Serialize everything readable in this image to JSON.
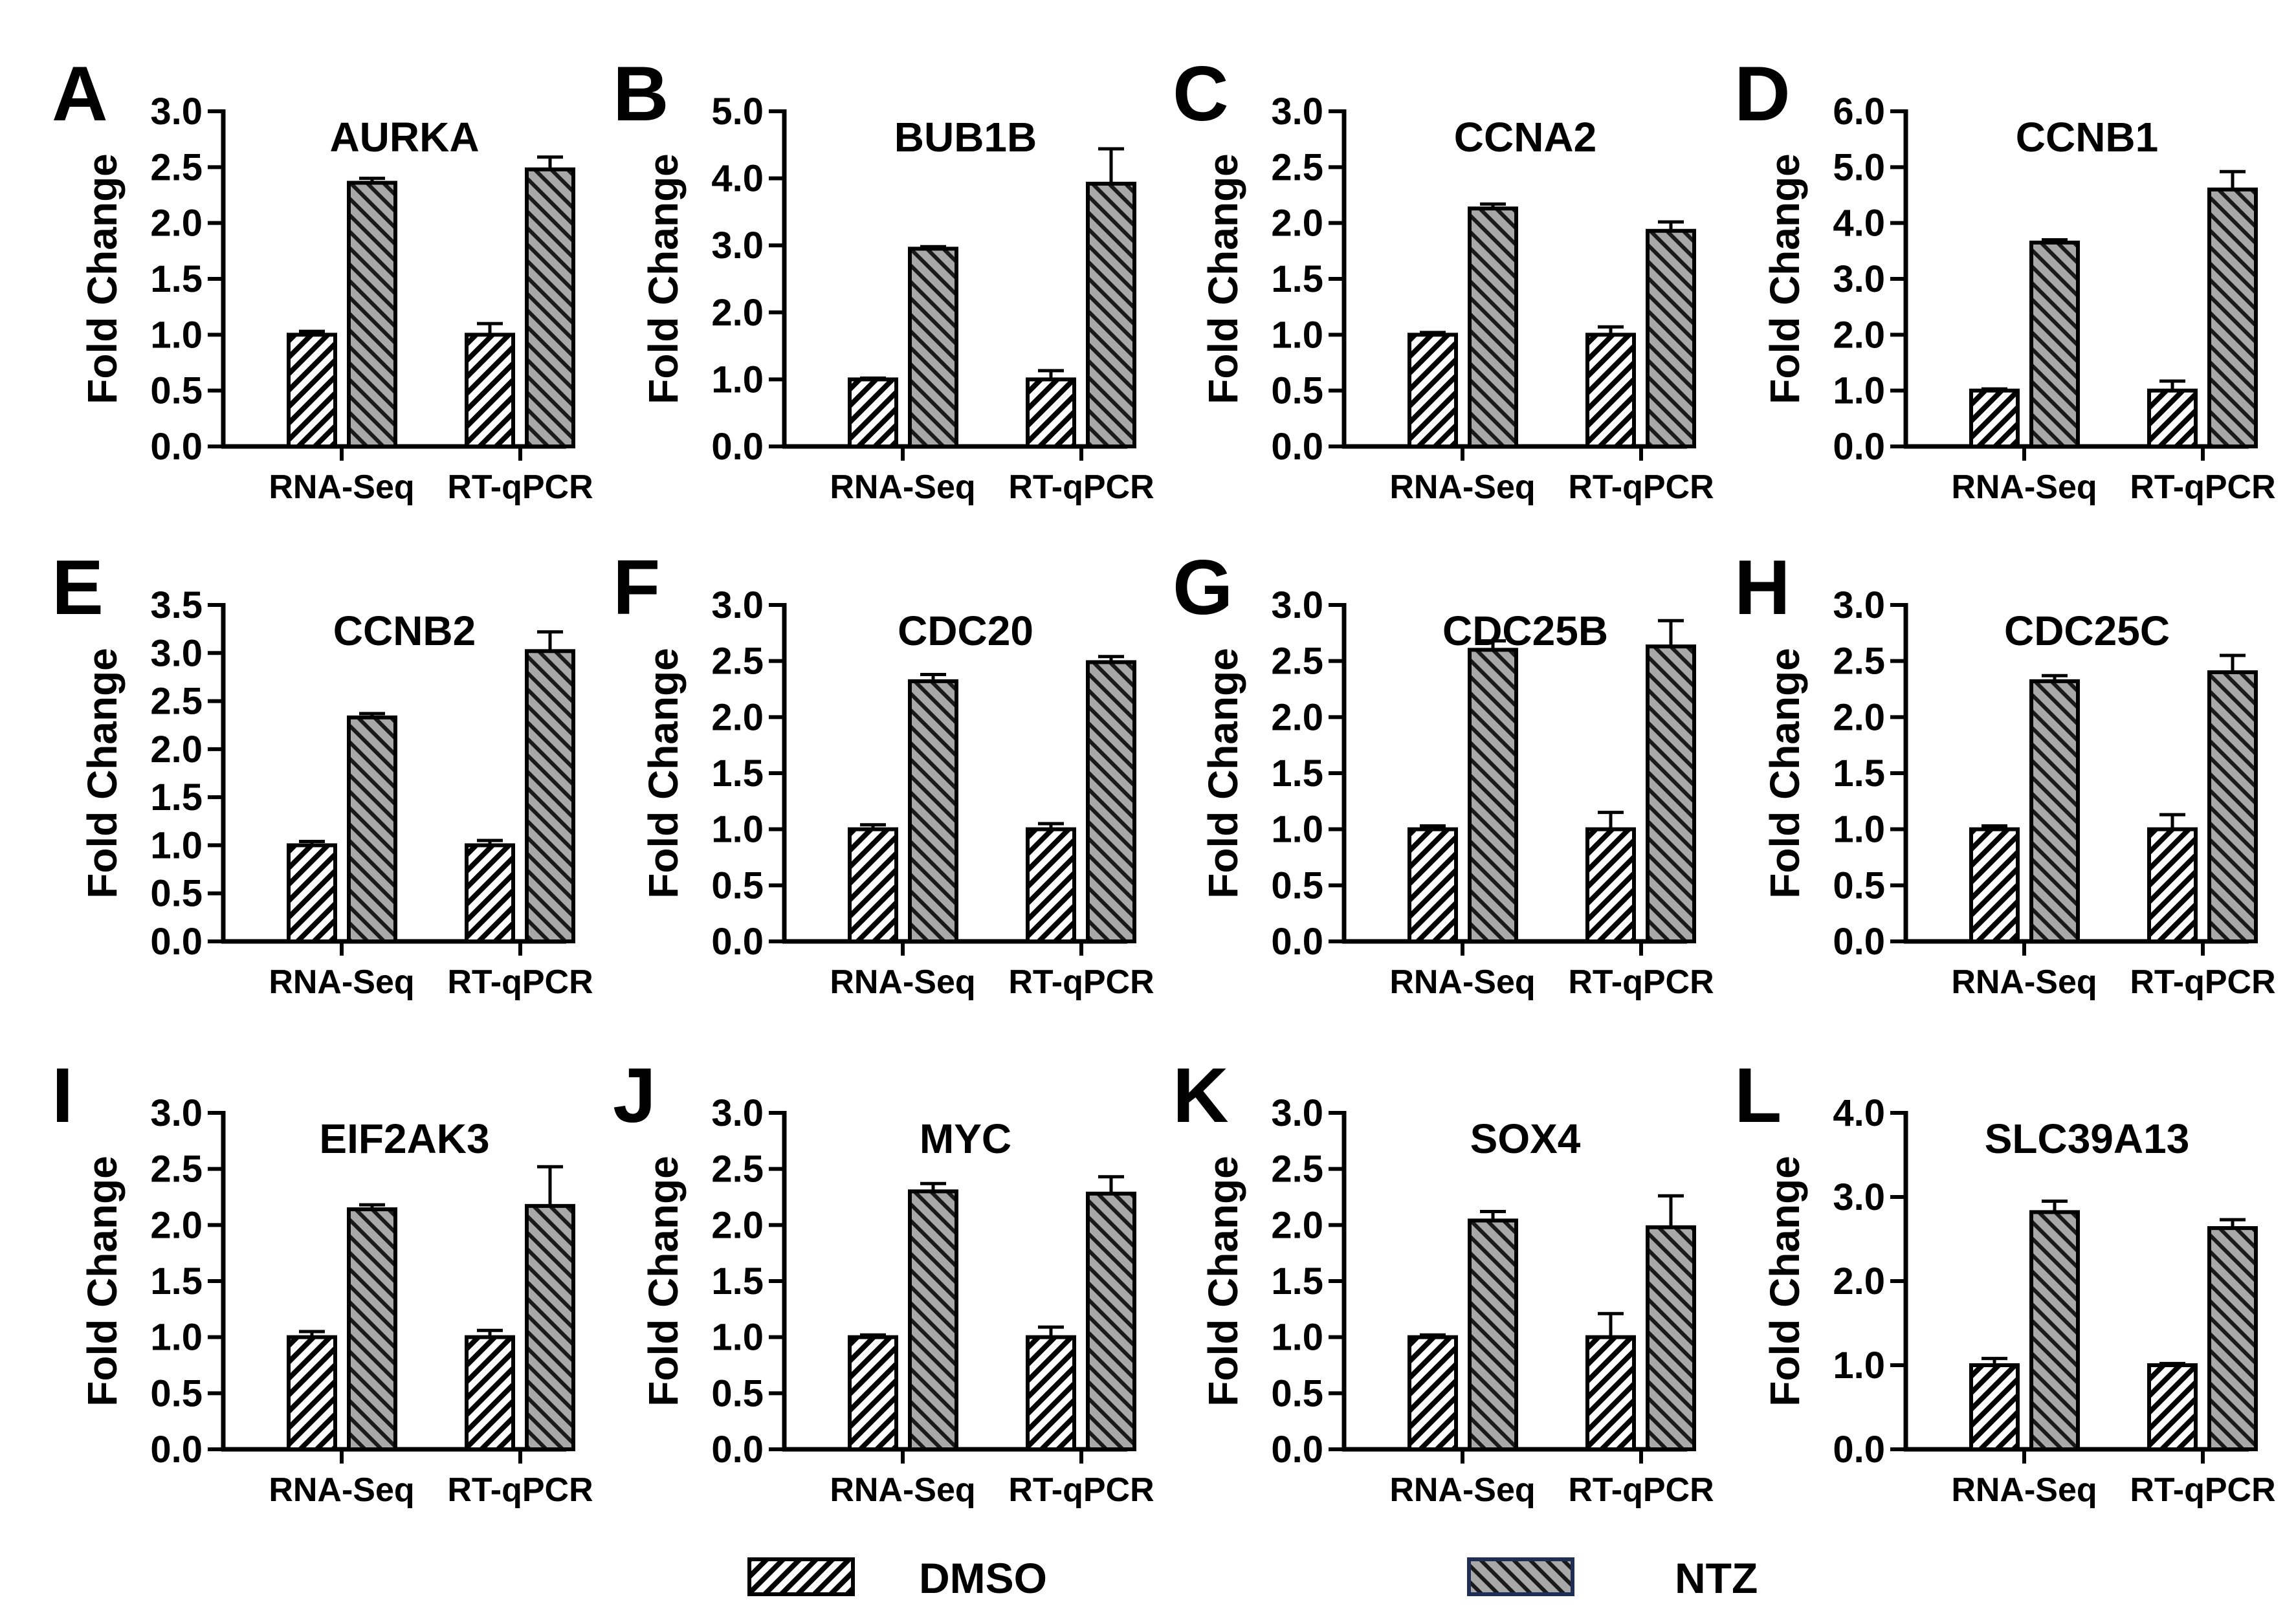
{
  "figure": {
    "y_axis_label": "Fold Change",
    "legend": [
      {
        "label": "DMSO",
        "pattern": "dmso-hatch"
      },
      {
        "label": "NTZ",
        "pattern": "ntz-hatch"
      }
    ]
  },
  "colors": {
    "dmso_fill": "#ffffff",
    "dmso_hatch": "#000000",
    "ntz_fill": "#a8a8a8",
    "ntz_hatch": "#000000",
    "legend_ntz_border": "#1f2e57",
    "axis": "#000000"
  },
  "chart_data": [
    {
      "type": "bar",
      "letter": "A",
      "title": "AURKA",
      "categories": [
        "RNA-Seq",
        "RT-qPCR"
      ],
      "ylabel": "Fold Change",
      "ylim": [
        0,
        3.0
      ],
      "ticks": [
        "0.0",
        "0.5",
        "1.0",
        "1.5",
        "2.0",
        "2.5",
        "3.0"
      ],
      "series": [
        {
          "name": "DMSO",
          "values": [
            1.0,
            1.0
          ],
          "errors": [
            0.03,
            0.1
          ]
        },
        {
          "name": "NTZ",
          "values": [
            2.36,
            2.48
          ],
          "errors": [
            0.04,
            0.11
          ]
        }
      ]
    },
    {
      "type": "bar",
      "letter": "B",
      "title": "BUB1B",
      "categories": [
        "RNA-Seq",
        "RT-qPCR"
      ],
      "ylabel": "Fold Change",
      "ylim": [
        0,
        5.0
      ],
      "ticks": [
        "0.0",
        "1.0",
        "2.0",
        "3.0",
        "4.0",
        "5.0"
      ],
      "series": [
        {
          "name": "DMSO",
          "values": [
            1.0,
            1.0
          ],
          "errors": [
            0.02,
            0.13
          ]
        },
        {
          "name": "NTZ",
          "values": [
            2.95,
            3.92
          ],
          "errors": [
            0.03,
            0.52
          ]
        }
      ]
    },
    {
      "type": "bar",
      "letter": "C",
      "title": "CCNA2",
      "categories": [
        "RNA-Seq",
        "RT-qPCR"
      ],
      "ylabel": "Fold Change",
      "ylim": [
        0,
        3.0
      ],
      "ticks": [
        "0.0",
        "0.5",
        "1.0",
        "1.5",
        "2.0",
        "2.5",
        "3.0"
      ],
      "series": [
        {
          "name": "DMSO",
          "values": [
            1.0,
            1.0
          ],
          "errors": [
            0.02,
            0.07
          ]
        },
        {
          "name": "NTZ",
          "values": [
            2.13,
            1.93
          ],
          "errors": [
            0.04,
            0.08
          ]
        }
      ]
    },
    {
      "type": "bar",
      "letter": "D",
      "title": "CCNB1",
      "categories": [
        "RNA-Seq",
        "RT-qPCR"
      ],
      "ylabel": "Fold Change",
      "ylim": [
        0,
        6.0
      ],
      "ticks": [
        "0.0",
        "1.0",
        "2.0",
        "3.0",
        "4.0",
        "5.0",
        "6.0"
      ],
      "series": [
        {
          "name": "DMSO",
          "values": [
            1.0,
            1.0
          ],
          "errors": [
            0.03,
            0.17
          ]
        },
        {
          "name": "NTZ",
          "values": [
            3.65,
            4.6
          ],
          "errors": [
            0.05,
            0.32
          ]
        }
      ]
    },
    {
      "type": "bar",
      "letter": "E",
      "title": "CCNB2",
      "categories": [
        "RNA-Seq",
        "RT-qPCR"
      ],
      "ylabel": "Fold Change",
      "ylim": [
        0,
        3.5
      ],
      "ticks": [
        "0.0",
        "0.5",
        "1.0",
        "1.5",
        "2.0",
        "2.5",
        "3.0",
        "3.5"
      ],
      "series": [
        {
          "name": "DMSO",
          "values": [
            1.0,
            1.0
          ],
          "errors": [
            0.04,
            0.05
          ]
        },
        {
          "name": "NTZ",
          "values": [
            2.33,
            3.02
          ],
          "errors": [
            0.04,
            0.2
          ]
        }
      ]
    },
    {
      "type": "bar",
      "letter": "F",
      "title": "CDC20",
      "categories": [
        "RNA-Seq",
        "RT-qPCR"
      ],
      "ylabel": "Fold Change",
      "ylim": [
        0,
        3.0
      ],
      "ticks": [
        "0.0",
        "0.5",
        "1.0",
        "1.5",
        "2.0",
        "2.5",
        "3.0"
      ],
      "series": [
        {
          "name": "DMSO",
          "values": [
            1.0,
            1.0
          ],
          "errors": [
            0.04,
            0.05
          ]
        },
        {
          "name": "NTZ",
          "values": [
            2.32,
            2.49
          ],
          "errors": [
            0.06,
            0.05
          ]
        }
      ]
    },
    {
      "type": "bar",
      "letter": "G",
      "title": "CDC25B",
      "categories": [
        "RNA-Seq",
        "RT-qPCR"
      ],
      "ylabel": "Fold Change",
      "ylim": [
        0,
        3.0
      ],
      "ticks": [
        "0.0",
        "0.5",
        "1.0",
        "1.5",
        "2.0",
        "2.5",
        "3.0"
      ],
      "series": [
        {
          "name": "DMSO",
          "values": [
            1.0,
            1.0
          ],
          "errors": [
            0.03,
            0.15
          ]
        },
        {
          "name": "NTZ",
          "values": [
            2.6,
            2.63
          ],
          "errors": [
            0.08,
            0.23
          ]
        }
      ]
    },
    {
      "type": "bar",
      "letter": "H",
      "title": "CDC25C",
      "categories": [
        "RNA-Seq",
        "RT-qPCR"
      ],
      "ylabel": "Fold Change",
      "ylim": [
        0,
        3.0
      ],
      "ticks": [
        "0.0",
        "0.5",
        "1.0",
        "1.5",
        "2.0",
        "2.5",
        "3.0"
      ],
      "series": [
        {
          "name": "DMSO",
          "values": [
            1.0,
            1.0
          ],
          "errors": [
            0.03,
            0.13
          ]
        },
        {
          "name": "NTZ",
          "values": [
            2.32,
            2.4
          ],
          "errors": [
            0.05,
            0.15
          ]
        }
      ]
    },
    {
      "type": "bar",
      "letter": "I",
      "title": "EIF2AK3",
      "categories": [
        "RNA-Seq",
        "RT-qPCR"
      ],
      "ylabel": "Fold Change",
      "ylim": [
        0,
        3.0
      ],
      "ticks": [
        "0.0",
        "0.5",
        "1.0",
        "1.5",
        "2.0",
        "2.5",
        "3.0"
      ],
      "series": [
        {
          "name": "DMSO",
          "values": [
            1.0,
            1.0
          ],
          "errors": [
            0.05,
            0.06
          ]
        },
        {
          "name": "NTZ",
          "values": [
            2.14,
            2.17
          ],
          "errors": [
            0.04,
            0.35
          ]
        }
      ]
    },
    {
      "type": "bar",
      "letter": "J",
      "title": "MYC",
      "categories": [
        "RNA-Seq",
        "RT-qPCR"
      ],
      "ylabel": "Fold Change",
      "ylim": [
        0,
        3.0
      ],
      "ticks": [
        "0.0",
        "0.5",
        "1.0",
        "1.5",
        "2.0",
        "2.5",
        "3.0"
      ],
      "series": [
        {
          "name": "DMSO",
          "values": [
            1.0,
            1.0
          ],
          "errors": [
            0.02,
            0.09
          ]
        },
        {
          "name": "NTZ",
          "values": [
            2.3,
            2.28
          ],
          "errors": [
            0.07,
            0.15
          ]
        }
      ]
    },
    {
      "type": "bar",
      "letter": "K",
      "title": "SOX4",
      "categories": [
        "RNA-Seq",
        "RT-qPCR"
      ],
      "ylabel": "Fold Change",
      "ylim": [
        0,
        3.0
      ],
      "ticks": [
        "0.0",
        "0.5",
        "1.0",
        "1.5",
        "2.0",
        "2.5",
        "3.0"
      ],
      "series": [
        {
          "name": "DMSO",
          "values": [
            1.0,
            1.0
          ],
          "errors": [
            0.02,
            0.21
          ]
        },
        {
          "name": "NTZ",
          "values": [
            2.04,
            1.98
          ],
          "errors": [
            0.08,
            0.28
          ]
        }
      ]
    },
    {
      "type": "bar",
      "letter": "L",
      "title": "SLC39A13",
      "categories": [
        "RNA-Seq",
        "RT-qPCR"
      ],
      "ylabel": "Fold Change",
      "ylim": [
        0,
        4.0
      ],
      "ticks": [
        "0.0",
        "1.0",
        "2.0",
        "3.0",
        "4.0"
      ],
      "series": [
        {
          "name": "DMSO",
          "values": [
            1.0,
            1.0
          ],
          "errors": [
            0.08,
            0.02
          ]
        },
        {
          "name": "NTZ",
          "values": [
            2.82,
            2.63
          ],
          "errors": [
            0.13,
            0.1
          ]
        }
      ]
    }
  ]
}
